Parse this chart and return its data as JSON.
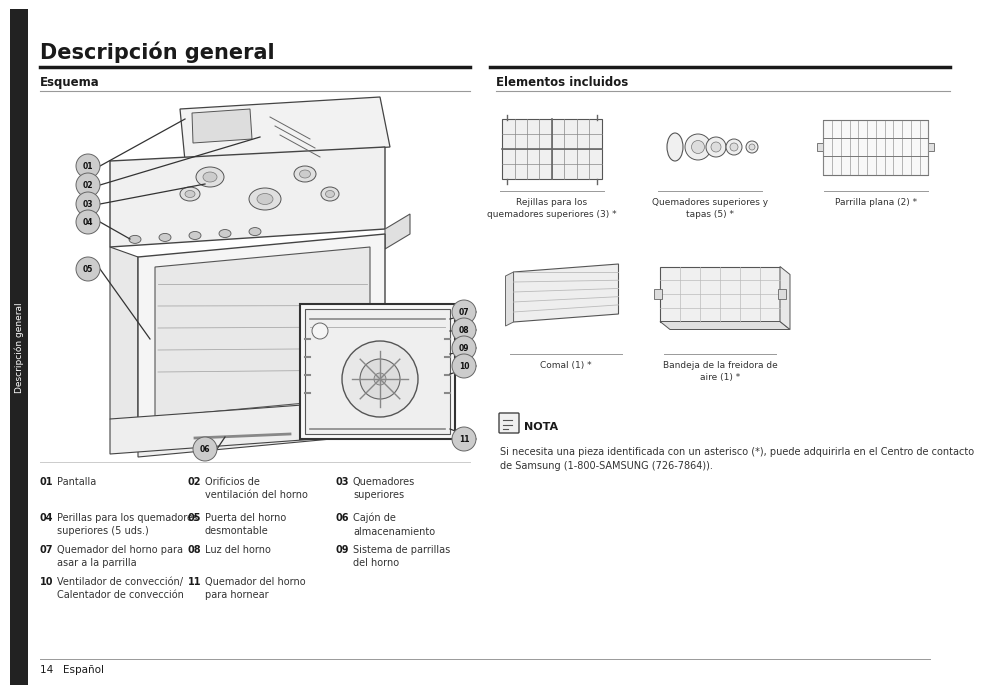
{
  "title": "Descripción general",
  "left_section_title": "Esquema",
  "right_section_title": "Elementos incluidos",
  "sidebar_text": "Descripción general",
  "footer_text": "14   Español",
  "parts_list": [
    {
      "num": "01",
      "text": "Pantalla",
      "col": 0,
      "row": 0
    },
    {
      "num": "02",
      "text": "Orificios de\nventilación del horno",
      "col": 1,
      "row": 0
    },
    {
      "num": "03",
      "text": "Quemadores\nsuperiores",
      "col": 2,
      "row": 0
    },
    {
      "num": "04",
      "text": "Perillas para los quemadores\nsuperiores (5 uds.)",
      "col": 0,
      "row": 1
    },
    {
      "num": "05",
      "text": "Puerta del horno\ndesmontable",
      "col": 1,
      "row": 1
    },
    {
      "num": "06",
      "text": "Cajón de\nalmacenamiento",
      "col": 2,
      "row": 1
    },
    {
      "num": "07",
      "text": "Quemador del horno para\nasar a la parrilla",
      "col": 0,
      "row": 2
    },
    {
      "num": "08",
      "text": "Luz del horno",
      "col": 1,
      "row": 2
    },
    {
      "num": "09",
      "text": "Sistema de parrillas\ndel horno",
      "col": 2,
      "row": 2
    },
    {
      "num": "10",
      "text": "Ventilador de convección/\nCalentador de convección",
      "col": 0,
      "row": 3
    },
    {
      "num": "11",
      "text": "Quemador del horno\npara hornear",
      "col": 1,
      "row": 3
    }
  ],
  "nota_text": "Si necesita una pieza identificada con un asterisco (*), puede adquirirla en el Centro de contacto\nde Samsung (1-800-SAMSUNG (726-7864)).",
  "bg_color": "#ffffff",
  "text_color": "#1a1a1a",
  "sidebar_bg": "#222222",
  "line_color": "#1a1a1a"
}
